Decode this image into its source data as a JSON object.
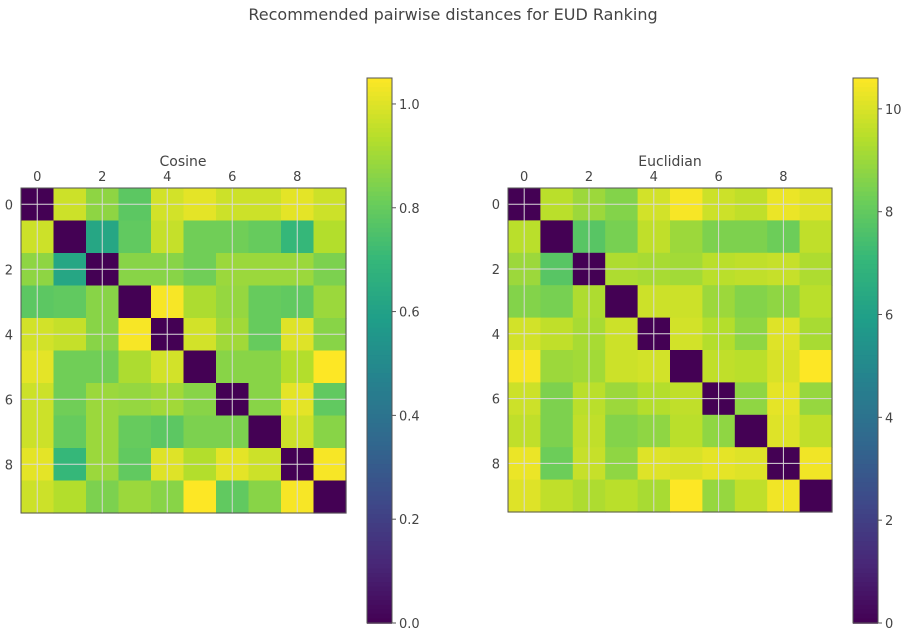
{
  "figure": {
    "suptitle": "Recommended pairwise distances for EUD Ranking"
  },
  "colormap": {
    "name": "viridis",
    "stops": [
      "#440154",
      "#482878",
      "#3e4989",
      "#31688e",
      "#26828e",
      "#1f9e89",
      "#35b779",
      "#6ece58",
      "#b5de2b",
      "#fde725"
    ]
  },
  "chart_data": [
    {
      "type": "heatmap",
      "title": "Cosine",
      "x_ticks": [
        "0",
        "2",
        "4",
        "6",
        "8"
      ],
      "y_ticks": [
        "0",
        "2",
        "4",
        "6",
        "8"
      ],
      "vmin": 0,
      "vmax": 1.05,
      "colorbar_ticks": [
        {
          "value": 0,
          "label": "0.0"
        },
        {
          "value": 0.2,
          "label": "0.2"
        },
        {
          "value": 0.4,
          "label": "0.4"
        },
        {
          "value": 0.6,
          "label": "0.6"
        },
        {
          "value": 0.8,
          "label": "0.8"
        },
        {
          "value": 1.0,
          "label": "1.0"
        }
      ],
      "grid": true,
      "matrix": [
        [
          0.0,
          0.97,
          0.87,
          0.78,
          0.98,
          1.01,
          0.97,
          0.97,
          1.01,
          0.97
        ],
        [
          0.97,
          0.0,
          0.62,
          0.79,
          0.96,
          0.82,
          0.82,
          0.8,
          0.7,
          0.93
        ],
        [
          0.87,
          0.62,
          0.0,
          0.86,
          0.86,
          0.82,
          0.89,
          0.89,
          0.89,
          0.84
        ],
        [
          0.78,
          0.79,
          0.86,
          0.0,
          1.04,
          0.92,
          0.88,
          0.8,
          0.79,
          0.89
        ],
        [
          0.98,
          0.96,
          0.86,
          1.04,
          0.0,
          0.98,
          0.9,
          0.8,
          1.0,
          0.86
        ],
        [
          1.01,
          0.82,
          0.82,
          0.92,
          0.98,
          0.0,
          0.86,
          0.86,
          0.93,
          1.05
        ],
        [
          0.97,
          0.82,
          0.89,
          0.88,
          0.9,
          0.86,
          0.0,
          0.86,
          1.01,
          0.79
        ],
        [
          0.97,
          0.8,
          0.89,
          0.8,
          0.78,
          0.84,
          0.84,
          0.0,
          0.97,
          0.86
        ],
        [
          1.01,
          0.7,
          0.89,
          0.79,
          1.0,
          0.93,
          1.01,
          0.97,
          0.0,
          1.04
        ],
        [
          0.97,
          0.93,
          0.84,
          0.89,
          0.86,
          1.05,
          0.79,
          0.86,
          1.04,
          0.0
        ]
      ]
    },
    {
      "type": "heatmap",
      "title": "Euclidian",
      "x_ticks": [
        "0",
        "2",
        "4",
        "6",
        "8"
      ],
      "y_ticks": [
        "0",
        "2",
        "4",
        "6",
        "8"
      ],
      "vmin": 0,
      "vmax": 10.6,
      "colorbar_ticks": [
        {
          "value": 0,
          "label": "0"
        },
        {
          "value": 2,
          "label": "2"
        },
        {
          "value": 4,
          "label": "4"
        },
        {
          "value": 6,
          "label": "6"
        },
        {
          "value": 8,
          "label": "8"
        },
        {
          "value": 10,
          "label": "10"
        }
      ],
      "grid": true,
      "matrix": [
        [
          0.0,
          9.5,
          9.0,
          8.6,
          9.9,
          10.5,
          9.8,
          9.6,
          10.3,
          10.1
        ],
        [
          9.5,
          0.0,
          7.8,
          8.4,
          9.6,
          9.0,
          8.5,
          8.5,
          8.2,
          9.6
        ],
        [
          9.0,
          7.8,
          0.0,
          9.3,
          9.2,
          9.1,
          9.5,
          9.6,
          9.7,
          9.3
        ],
        [
          8.6,
          8.4,
          9.3,
          0.0,
          9.8,
          9.8,
          9.0,
          8.6,
          8.8,
          9.5
        ],
        [
          9.9,
          9.6,
          9.2,
          9.8,
          0.0,
          9.9,
          9.4,
          8.8,
          10.1,
          9.2
        ],
        [
          10.5,
          9.0,
          9.1,
          9.8,
          9.9,
          0.0,
          9.6,
          9.5,
          10.0,
          10.6
        ],
        [
          9.8,
          8.5,
          9.5,
          9.0,
          9.4,
          9.6,
          0.0,
          8.8,
          10.2,
          8.9
        ],
        [
          9.6,
          8.5,
          9.6,
          8.6,
          8.8,
          9.5,
          8.8,
          0.0,
          10.1,
          9.6
        ],
        [
          10.3,
          8.2,
          9.7,
          8.8,
          10.1,
          10.0,
          10.2,
          10.1,
          0.0,
          10.4
        ],
        [
          10.1,
          9.6,
          9.3,
          9.5,
          9.2,
          10.6,
          8.9,
          9.6,
          10.4,
          0.0
        ]
      ]
    }
  ]
}
